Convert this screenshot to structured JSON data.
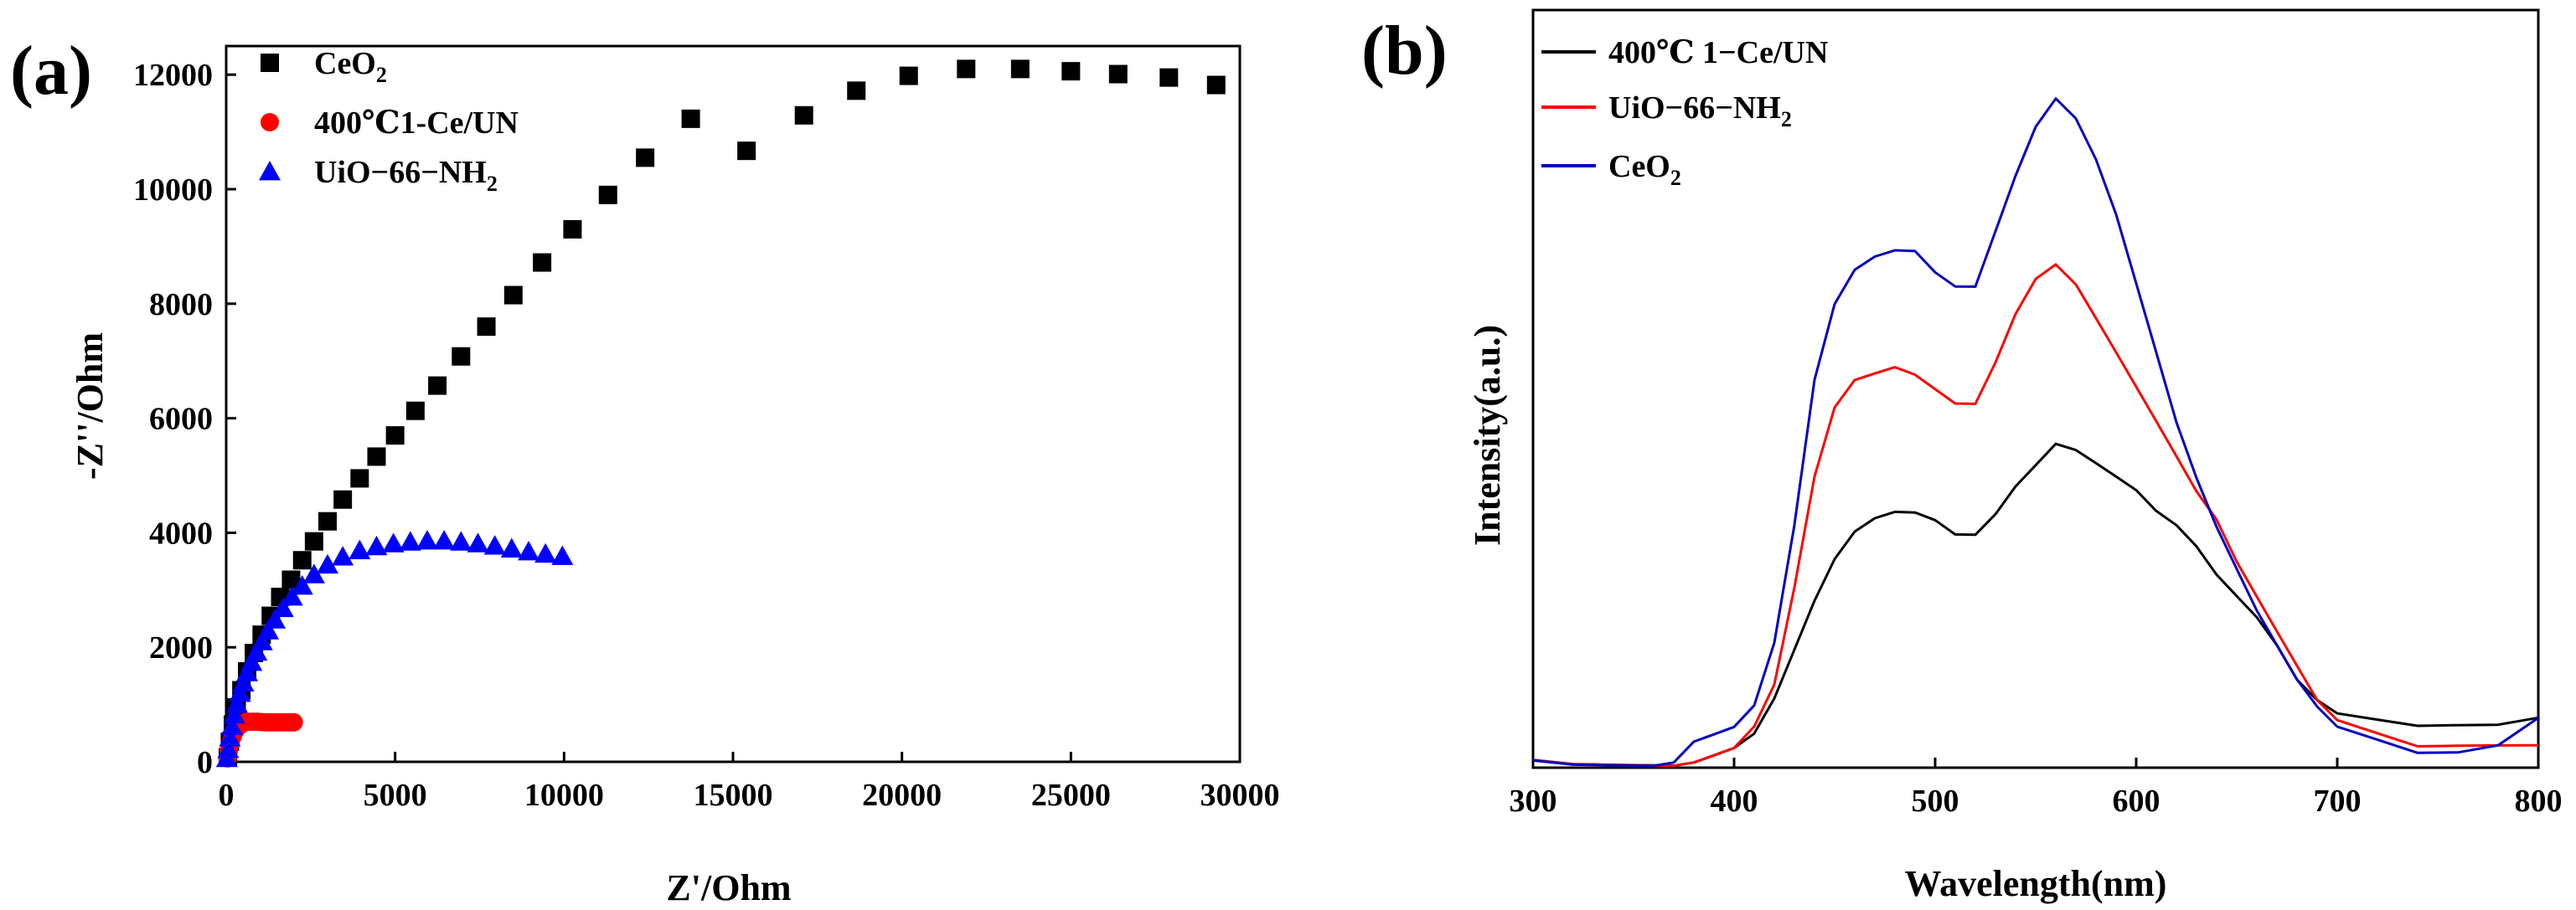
{
  "figure": {
    "panel_a_label": "(a)",
    "panel_b_label": "(b)"
  },
  "chart_data": [
    {
      "type": "scatter",
      "panel": "a",
      "title": "",
      "xlabel": "Z'/Ohm",
      "ylabel": "-Z''/Ohm",
      "xlim": [
        0,
        30000
      ],
      "ylim": [
        0,
        12500
      ],
      "xticks": [
        0,
        5000,
        10000,
        15000,
        20000,
        25000,
        30000
      ],
      "xtick_labels": [
        "0",
        "5000",
        "10000",
        "15000",
        "20000",
        "25000",
        "30000"
      ],
      "yticks": [
        0,
        2000,
        4000,
        6000,
        8000,
        10000,
        12000
      ],
      "ytick_labels": [
        "0",
        "2000",
        "4000",
        "6000",
        "8000",
        "10000",
        "12000"
      ],
      "legend_position": "top-left",
      "series": [
        {
          "name": "CeO2",
          "legend_main": "CeO",
          "legend_sub": "2",
          "color": "#000000",
          "marker": "square",
          "points": [
            [
              50,
              80
            ],
            [
              110,
              350
            ],
            [
              200,
              650
            ],
            [
              310,
              950
            ],
            [
              450,
              1250
            ],
            [
              620,
              1580
            ],
            [
              820,
              1900
            ],
            [
              1050,
              2220
            ],
            [
              1320,
              2550
            ],
            [
              1600,
              2880
            ],
            [
              1920,
              3180
            ],
            [
              2250,
              3520
            ],
            [
              2600,
              3850
            ],
            [
              3000,
              4200
            ],
            [
              3450,
              4580
            ],
            [
              3950,
              4950
            ],
            [
              4450,
              5330
            ],
            [
              5000,
              5700
            ],
            [
              5600,
              6130
            ],
            [
              6250,
              6570
            ],
            [
              6950,
              7080
            ],
            [
              7700,
              7600
            ],
            [
              8500,
              8150
            ],
            [
              9350,
              8720
            ],
            [
              10250,
              9300
            ],
            [
              11300,
              9900
            ],
            [
              12400,
              10550
            ],
            [
              13750,
              11230
            ],
            [
              15400,
              10670
            ],
            [
              17100,
              11290
            ],
            [
              18650,
              11720
            ],
            [
              20200,
              11980
            ],
            [
              21900,
              12100
            ],
            [
              23500,
              12100
            ],
            [
              25000,
              12060
            ],
            [
              26400,
              12010
            ],
            [
              27900,
              11950
            ],
            [
              29300,
              11820
            ]
          ]
        },
        {
          "name": "400℃1-Ce/UN",
          "legend_main": "400℃1-Ce/UN",
          "legend_sub": "",
          "color": "#ff0000",
          "marker": "circle",
          "points": [
            [
              40,
              60
            ],
            [
              80,
              200
            ],
            [
              130,
              330
            ],
            [
              190,
              440
            ],
            [
              260,
              540
            ],
            [
              350,
              610
            ],
            [
              450,
              660
            ],
            [
              560,
              690
            ],
            [
              680,
              700
            ],
            [
              800,
              700
            ],
            [
              920,
              700
            ],
            [
              1040,
              695
            ],
            [
              1160,
              690
            ],
            [
              1280,
              690
            ],
            [
              1400,
              690
            ],
            [
              1520,
              690
            ],
            [
              1640,
              690
            ],
            [
              1760,
              690
            ],
            [
              1880,
              690
            ],
            [
              2000,
              690
            ]
          ]
        },
        {
          "name": "UiO-66-NH2",
          "legend_main": "UiO−66−NH",
          "legend_sub": "2",
          "color": "#0000ff",
          "marker": "triangle",
          "points": [
            [
              20,
              60
            ],
            [
              60,
              220
            ],
            [
              110,
              420
            ],
            [
              170,
              620
            ],
            [
              240,
              820
            ],
            [
              320,
              1010
            ],
            [
              410,
              1200
            ],
            [
              510,
              1380
            ],
            [
              620,
              1560
            ],
            [
              750,
              1740
            ],
            [
              900,
              1920
            ],
            [
              1060,
              2100
            ],
            [
              1240,
              2290
            ],
            [
              1440,
              2480
            ],
            [
              1680,
              2680
            ],
            [
              1950,
              2880
            ],
            [
              2250,
              3070
            ],
            [
              2600,
              3270
            ],
            [
              3000,
              3440
            ],
            [
              3450,
              3580
            ],
            [
              3950,
              3690
            ],
            [
              4450,
              3760
            ],
            [
              4950,
              3810
            ],
            [
              5450,
              3840
            ],
            [
              5950,
              3860
            ],
            [
              6450,
              3860
            ],
            [
              6950,
              3840
            ],
            [
              7450,
              3810
            ],
            [
              7950,
              3770
            ],
            [
              8450,
              3720
            ],
            [
              8950,
              3670
            ],
            [
              9450,
              3630
            ],
            [
              9950,
              3590
            ]
          ]
        }
      ]
    },
    {
      "type": "line",
      "panel": "b",
      "title": "",
      "xlabel": "Wavelength(nm)",
      "ylabel": "Intensity(a.u.)",
      "xlim": [
        300,
        800
      ],
      "ylim": [
        0,
        1
      ],
      "xticks": [
        300,
        400,
        500,
        600,
        700,
        800
      ],
      "xtick_labels": [
        "300",
        "400",
        "500",
        "600",
        "700",
        "800"
      ],
      "y_tick_labels_shown": false,
      "legend_position": "top-left",
      "series": [
        {
          "name": "400℃ 1-Ce/UN",
          "legend_main": "400℃ 1−Ce/UN",
          "legend_sub": "",
          "color": "#000000",
          "x": [
            300,
            320,
            340,
            360,
            370,
            380,
            390,
            400,
            410,
            420,
            430,
            440,
            450,
            460,
            470,
            480,
            490,
            500,
            510,
            520,
            530,
            540,
            550,
            560,
            570,
            580,
            590,
            600,
            610,
            620,
            630,
            640,
            650,
            660,
            670,
            680,
            690,
            700,
            720,
            740,
            760,
            780,
            800
          ],
          "y": [
            0.01,
            0.005,
            0.005,
            0.005,
            0.005,
            0.01,
            0.02,
            0.03,
            0.05,
            0.1,
            0.17,
            0.24,
            0.3,
            0.34,
            0.36,
            0.37,
            0.37,
            0.36,
            0.34,
            0.34,
            0.37,
            0.41,
            0.44,
            0.47,
            0.46,
            0.44,
            0.42,
            0.4,
            0.37,
            0.35,
            0.32,
            0.28,
            0.25,
            0.22,
            0.18,
            0.13,
            0.1,
            0.08,
            0.07,
            0.06,
            0.06,
            0.06,
            0.07
          ]
        },
        {
          "name": "UiO-66-NH2",
          "legend_main": "UiO−66−NH",
          "legend_sub": "2",
          "color": "#ff0000",
          "x": [
            300,
            320,
            340,
            360,
            370,
            380,
            390,
            400,
            410,
            420,
            430,
            440,
            450,
            460,
            470,
            480,
            490,
            500,
            510,
            520,
            530,
            540,
            550,
            560,
            570,
            580,
            590,
            600,
            610,
            620,
            630,
            640,
            650,
            660,
            670,
            680,
            690,
            700,
            720,
            740,
            760,
            780,
            800
          ],
          "y": [
            0.01,
            0.005,
            0.005,
            0.005,
            0.005,
            0.01,
            0.02,
            0.03,
            0.06,
            0.12,
            0.26,
            0.42,
            0.52,
            0.56,
            0.57,
            0.58,
            0.57,
            0.55,
            0.53,
            0.53,
            0.59,
            0.66,
            0.71,
            0.73,
            0.7,
            0.65,
            0.6,
            0.55,
            0.5,
            0.45,
            0.4,
            0.36,
            0.3,
            0.25,
            0.2,
            0.15,
            0.1,
            0.07,
            0.05,
            0.03,
            0.03,
            0.03,
            0.03
          ]
        },
        {
          "name": "CeO2",
          "legend_main": "CeO",
          "legend_sub": "2",
          "color": "#0000c0",
          "x": [
            300,
            320,
            340,
            360,
            370,
            380,
            390,
            400,
            410,
            420,
            430,
            440,
            450,
            460,
            470,
            480,
            490,
            500,
            510,
            520,
            530,
            540,
            550,
            560,
            570,
            580,
            590,
            600,
            610,
            620,
            630,
            640,
            650,
            660,
            670,
            680,
            690,
            700,
            720,
            740,
            760,
            780,
            800
          ],
          "y": [
            0.01,
            0.005,
            0.005,
            0.005,
            0.01,
            0.04,
            0.05,
            0.06,
            0.09,
            0.18,
            0.35,
            0.56,
            0.67,
            0.72,
            0.74,
            0.75,
            0.75,
            0.72,
            0.7,
            0.7,
            0.78,
            0.86,
            0.93,
            0.97,
            0.94,
            0.88,
            0.8,
            0.7,
            0.6,
            0.5,
            0.42,
            0.35,
            0.29,
            0.23,
            0.18,
            0.13,
            0.09,
            0.06,
            0.04,
            0.02,
            0.02,
            0.03,
            0.07
          ]
        }
      ]
    }
  ]
}
